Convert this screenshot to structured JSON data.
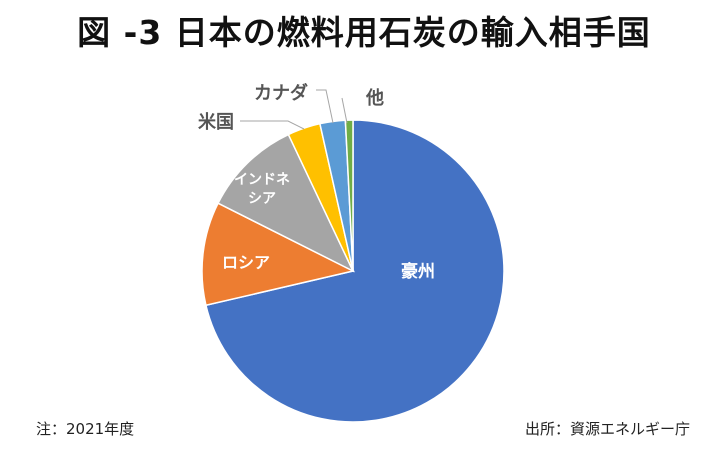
{
  "title": "図 -3 日本の燃料用石炭の輸入相手国",
  "footnote": "注：2021年度",
  "source": "出所：資源エネルギー庁",
  "chart_data": {
    "type": "pie",
    "start_angle": "12 o'clock",
    "direction": "clockwise",
    "slices": [
      {
        "label": "豪州",
        "value": 71.0,
        "color": "#4472C4"
      },
      {
        "label": "ロシア",
        "value": 11.0,
        "color": "#ED7D31"
      },
      {
        "label": "インドネシア",
        "value": 10.5,
        "color": "#A5A5A5"
      },
      {
        "label": "米国",
        "value": 3.5,
        "color": "#FFC000"
      },
      {
        "label": "カナダ",
        "value": 2.7,
        "color": "#5B9BD5"
      },
      {
        "label": "他",
        "value": 0.8,
        "color": "#70AD47"
      }
    ]
  }
}
